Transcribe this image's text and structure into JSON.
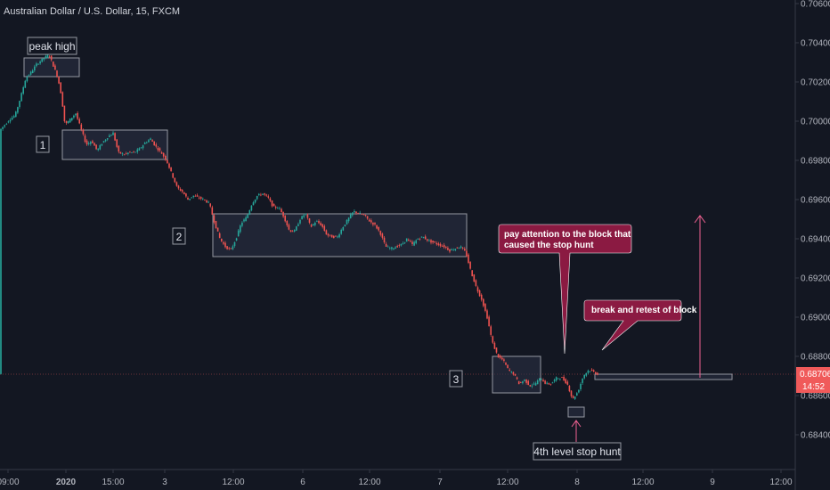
{
  "header": {
    "title": "Australian Dollar / U.S. Dollar, 15, FXCM"
  },
  "colors": {
    "background": "#131722",
    "bull": "#26a69a",
    "bear": "#ef5350",
    "box_stroke": "#9598a1",
    "box_fill": "#2a2e42",
    "callout": "#8b1a42",
    "price_tag": "#f05a5a",
    "axis_text": "#b2b5be"
  },
  "chart_data": {
    "type": "candlestick",
    "title": "Australian Dollar / U.S. Dollar, 15, FXCM",
    "ylim": [
      0.6824,
      0.7062
    ],
    "y_ticks": [
      "0.70600",
      "0.70400",
      "0.70200",
      "0.70000",
      "0.69800",
      "0.69600",
      "0.69400",
      "0.69200",
      "0.69000",
      "0.68800",
      "0.68600",
      "0.68400"
    ],
    "x_ticks": [
      "09:00",
      "2020",
      "15:00",
      "3",
      "12:00",
      "6",
      "12:00",
      "7",
      "12:00",
      "8",
      "12:00",
      "9",
      "12:00"
    ],
    "current_price": "0.68706",
    "countdown": "14:52",
    "price_path": [
      [
        0,
        0.6995
      ],
      [
        6,
        0.6998
      ],
      [
        12,
        0.7001
      ],
      [
        18,
        0.7003
      ],
      [
        24,
        0.7012
      ],
      [
        30,
        0.7022
      ],
      [
        36,
        0.7025
      ],
      [
        42,
        0.7029
      ],
      [
        50,
        0.7032
      ],
      [
        56,
        0.7034
      ],
      [
        62,
        0.7027
      ],
      [
        66,
        0.7022
      ],
      [
        70,
        0.7013
      ],
      [
        74,
        0.6998
      ],
      [
        80,
        0.7001
      ],
      [
        86,
        0.7004
      ],
      [
        92,
        0.6996
      ],
      [
        98,
        0.6988
      ],
      [
        104,
        0.699
      ],
      [
        110,
        0.6985
      ],
      [
        116,
        0.6989
      ],
      [
        122,
        0.6992
      ],
      [
        128,
        0.6994
      ],
      [
        134,
        0.6984
      ],
      [
        140,
        0.6983
      ],
      [
        146,
        0.6984
      ],
      [
        152,
        0.6984
      ],
      [
        158,
        0.6986
      ],
      [
        164,
        0.6989
      ],
      [
        170,
        0.6991
      ],
      [
        176,
        0.6987
      ],
      [
        182,
        0.6984
      ],
      [
        188,
        0.698
      ],
      [
        194,
        0.6973
      ],
      [
        200,
        0.6966
      ],
      [
        206,
        0.6964
      ],
      [
        212,
        0.696
      ],
      [
        218,
        0.6962
      ],
      [
        224,
        0.6961
      ],
      [
        230,
        0.696
      ],
      [
        236,
        0.6958
      ],
      [
        242,
        0.6948
      ],
      [
        248,
        0.694
      ],
      [
        254,
        0.6936
      ],
      [
        260,
        0.6934
      ],
      [
        266,
        0.694
      ],
      [
        272,
        0.6948
      ],
      [
        278,
        0.6951
      ],
      [
        284,
        0.6958
      ],
      [
        290,
        0.6962
      ],
      [
        296,
        0.6963
      ],
      [
        302,
        0.6961
      ],
      [
        308,
        0.6956
      ],
      [
        314,
        0.6956
      ],
      [
        320,
        0.6951
      ],
      [
        326,
        0.6944
      ],
      [
        332,
        0.6944
      ],
      [
        338,
        0.695
      ],
      [
        344,
        0.6953
      ],
      [
        350,
        0.6946
      ],
      [
        356,
        0.6949
      ],
      [
        362,
        0.6947
      ],
      [
        368,
        0.6942
      ],
      [
        374,
        0.6941
      ],
      [
        380,
        0.6941
      ],
      [
        386,
        0.6946
      ],
      [
        392,
        0.695
      ],
      [
        398,
        0.6954
      ],
      [
        404,
        0.6953
      ],
      [
        410,
        0.6952
      ],
      [
        416,
        0.6949
      ],
      [
        422,
        0.6947
      ],
      [
        428,
        0.6943
      ],
      [
        434,
        0.6936
      ],
      [
        440,
        0.6935
      ],
      [
        446,
        0.6936
      ],
      [
        452,
        0.6937
      ],
      [
        458,
        0.694
      ],
      [
        464,
        0.6937
      ],
      [
        470,
        0.694
      ],
      [
        476,
        0.6941
      ],
      [
        482,
        0.6939
      ],
      [
        488,
        0.6938
      ],
      [
        494,
        0.6937
      ],
      [
        500,
        0.6936
      ],
      [
        506,
        0.6934
      ],
      [
        512,
        0.6935
      ],
      [
        518,
        0.6936
      ],
      [
        524,
        0.6933
      ],
      [
        530,
        0.6923
      ],
      [
        536,
        0.6915
      ],
      [
        542,
        0.6909
      ],
      [
        548,
        0.69
      ],
      [
        554,
        0.6887
      ],
      [
        560,
        0.688
      ],
      [
        566,
        0.6878
      ],
      [
        572,
        0.6873
      ],
      [
        578,
        0.6871
      ],
      [
        584,
        0.6866
      ],
      [
        590,
        0.6868
      ],
      [
        596,
        0.6865
      ],
      [
        602,
        0.6866
      ],
      [
        608,
        0.6869
      ],
      [
        614,
        0.6866
      ],
      [
        620,
        0.6866
      ],
      [
        626,
        0.6869
      ],
      [
        632,
        0.6869
      ],
      [
        638,
        0.6866
      ],
      [
        644,
        0.6858
      ],
      [
        650,
        0.6862
      ],
      [
        656,
        0.687
      ],
      [
        662,
        0.6873
      ],
      [
        668,
        0.6872
      ],
      [
        672,
        0.6871
      ]
    ]
  },
  "annotations": {
    "peak_high": "peak high",
    "label_1": "1",
    "label_2": "2",
    "label_3": "3",
    "stop_hunt": "4th level stop hunt",
    "callout_block_line1": "pay attention to the block that",
    "callout_block_line2": "caused the stop hunt",
    "callout_retest": "break and retest of block"
  }
}
